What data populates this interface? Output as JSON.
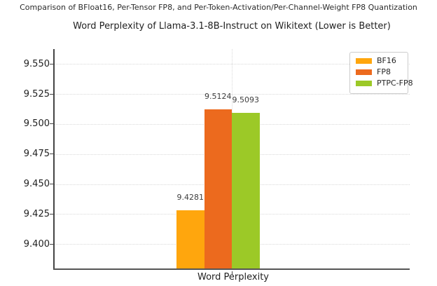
{
  "suptitle": "Comparison of BFloat16, Per-Tensor FP8, and Per-Token-Activation/Per-Channel-Weight FP8 Quantization",
  "chart_data": {
    "type": "bar",
    "title": "Word Perplexity of Llama-3.1-8B-Instruct on Wikitext (Lower is Better)",
    "categories": [
      "Word Perplexity"
    ],
    "series": [
      {
        "name": "BF16",
        "color": "#ffa60d",
        "values": [
          9.4281
        ]
      },
      {
        "name": "FP8",
        "color": "#ec6a1e",
        "values": [
          9.5124
        ]
      },
      {
        "name": "PTPC-FP8",
        "color": "#9cc927",
        "values": [
          9.5093
        ]
      }
    ],
    "value_label_decimals": 4,
    "yticks": [
      9.4,
      9.425,
      9.45,
      9.475,
      9.5,
      9.525,
      9.55
    ],
    "ytick_decimals": 3,
    "ylim": [
      9.3785,
      9.5625
    ],
    "xlabel": "",
    "ylabel": "",
    "grid": "dotted",
    "legend_position": "upper right",
    "colors": {
      "grid": "#d9d9d9",
      "spine": "#555555",
      "text": "#1f1f1f"
    }
  }
}
